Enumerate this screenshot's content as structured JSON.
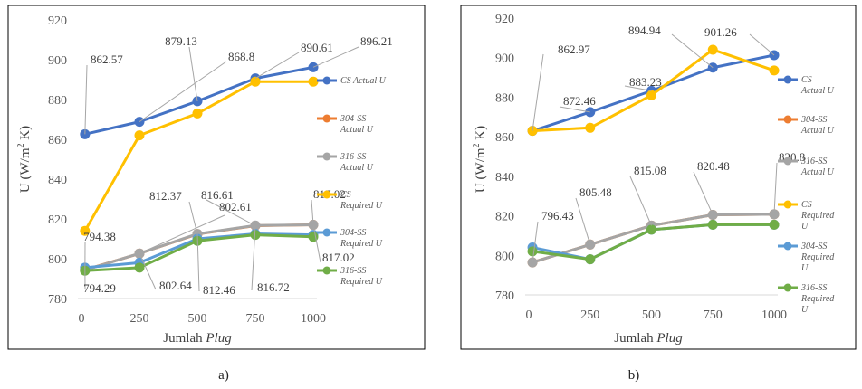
{
  "colors": {
    "cs_actual": "#4472C4",
    "ss304_actual": "#ED7D31",
    "ss316_actual": "#A5A5A5",
    "cs_required": "#FFC000",
    "ss304_required": "#5B9BD5",
    "ss316_required": "#70AD47"
  },
  "chart_data": [
    {
      "type": "line",
      "caption": "a)",
      "xlabel_prefix": "Jumlah ",
      "xlabel_italic": "Plug",
      "ylabel": "U (W/m² K)",
      "ylabel_main": "U (W/m",
      "ylabel_sup": "2",
      "ylabel_end": " K)",
      "x": [
        15,
        250,
        500,
        750,
        1000
      ],
      "xticks": [
        0,
        250,
        500,
        750,
        1000
      ],
      "xlim": [
        0,
        1000
      ],
      "ylim": [
        780,
        920
      ],
      "yticks": [
        780,
        800,
        820,
        840,
        860,
        880,
        900,
        920
      ],
      "series": [
        {
          "key": "cs_actual",
          "legend": [
            "CS Actual U"
          ],
          "values": [
            862.57,
            868.8,
            879.13,
            890.61,
            896.21
          ]
        },
        {
          "key": "ss304_actual",
          "legend": [
            "304-SS",
            "Actual U"
          ],
          "values": [
            794.38,
            802.61,
            812.37,
            816.61,
            817.02
          ]
        },
        {
          "key": "ss316_actual",
          "legend": [
            "316-SS",
            "Actual U"
          ],
          "values": [
            794.29,
            802.64,
            812.46,
            816.72,
            817.02
          ]
        },
        {
          "key": "cs_required",
          "legend": [
            "CS",
            "Required U"
          ],
          "values": [
            814,
            862,
            873,
            889,
            889
          ]
        },
        {
          "key": "ss304_required",
          "legend": [
            "304-SS",
            "Required U"
          ],
          "values": [
            795.5,
            798,
            810,
            812.5,
            812
          ]
        },
        {
          "key": "ss316_required",
          "legend": [
            "316-SS",
            "Required U"
          ],
          "values": [
            794,
            795.5,
            809,
            812,
            811
          ]
        }
      ],
      "annotations": [
        {
          "text": "862.57"
        },
        {
          "text": "868.8"
        },
        {
          "text": "879.13"
        },
        {
          "text": "890.61"
        },
        {
          "text": "896.21"
        },
        {
          "text": "794.38"
        },
        {
          "text": "802.61"
        },
        {
          "text": "812.37"
        },
        {
          "text": "816.61"
        },
        {
          "text": "817.02"
        },
        {
          "text": "794.29"
        },
        {
          "text": "802.64"
        },
        {
          "text": "812.46"
        },
        {
          "text": "816.72"
        },
        {
          "text": "817.02"
        }
      ]
    },
    {
      "type": "line",
      "caption": "b)",
      "xlabel_prefix": "Jumlah ",
      "xlabel_italic": "Plug",
      "ylabel": "U (W/m² K)",
      "ylabel_main": "U (W/m",
      "ylabel_sup": "2",
      "ylabel_end": " K)",
      "x": [
        15,
        250,
        500,
        750,
        1000
      ],
      "xticks": [
        0,
        250,
        500,
        750,
        1000
      ],
      "xlim": [
        0,
        1000
      ],
      "ylim": [
        780,
        920
      ],
      "yticks": [
        780,
        800,
        820,
        840,
        860,
        880,
        900,
        920
      ],
      "series": [
        {
          "key": "cs_actual",
          "legend": [
            "CS",
            "Actual U"
          ],
          "values": [
            862.97,
            872.46,
            883.23,
            894.94,
            901.26
          ]
        },
        {
          "key": "ss304_actual",
          "legend": [
            "304-SS",
            "Actual U"
          ],
          "values": [
            796.43,
            805.48,
            815.08,
            820.48,
            820.8
          ]
        },
        {
          "key": "ss316_actual",
          "legend": [
            "316-SS",
            "Actual U"
          ],
          "values": [
            796.43,
            805.48,
            815.08,
            820.48,
            820.8
          ]
        },
        {
          "key": "cs_required",
          "legend": [
            "CS",
            "Required",
            "U"
          ],
          "values": [
            863,
            864.5,
            881,
            904,
            893.5
          ]
        },
        {
          "key": "ss304_required",
          "legend": [
            "304-SS",
            "Required",
            "U"
          ],
          "values": [
            804,
            798,
            813,
            815.5,
            815.5
          ]
        },
        {
          "key": "ss316_required",
          "legend": [
            "316-SS",
            "Required",
            "U"
          ],
          "values": [
            802,
            798,
            813,
            815.5,
            815.5
          ]
        }
      ],
      "annotations": [
        {
          "text": "862.97"
        },
        {
          "text": "872.46"
        },
        {
          "text": "883.23"
        },
        {
          "text": "894.94"
        },
        {
          "text": "901.26"
        },
        {
          "text": "796.43"
        },
        {
          "text": "805.48"
        },
        {
          "text": "815.08"
        },
        {
          "text": "820.48"
        },
        {
          "text": "820.8"
        }
      ]
    }
  ]
}
